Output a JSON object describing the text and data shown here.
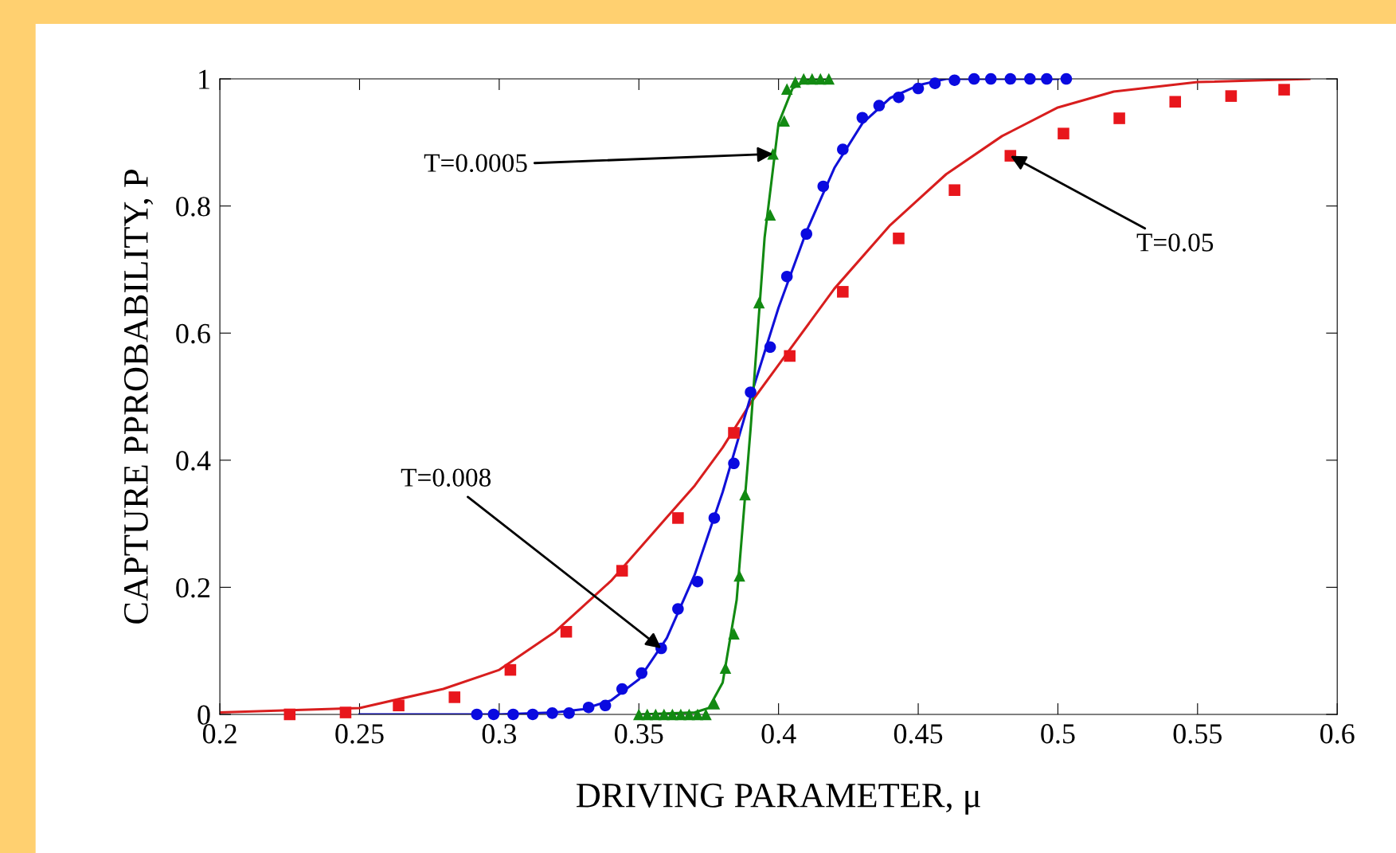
{
  "chart_data": {
    "type": "scatter",
    "xlabel": "DRIVING PARAMETER, μ",
    "ylabel": "CAPTURE PPROBABILITY, P",
    "xlim": [
      0.2,
      0.6
    ],
    "ylim": [
      0,
      1
    ],
    "xticks": [
      0.2,
      0.25,
      0.3,
      0.35,
      0.4,
      0.45,
      0.5,
      0.55,
      0.6
    ],
    "yticks": [
      0,
      0.2,
      0.4,
      0.6,
      0.8,
      1
    ],
    "grid": false,
    "legend": false,
    "series": [
      {
        "type": "line",
        "color": "#d81e1e",
        "marker": "none",
        "x": [
          0.2,
          0.25,
          0.28,
          0.3,
          0.32,
          0.34,
          0.36,
          0.37,
          0.38,
          0.39,
          0.4,
          0.42,
          0.44,
          0.46,
          0.48,
          0.5,
          0.52,
          0.55,
          0.59
        ],
        "values": [
          0.003,
          0.01,
          0.04,
          0.07,
          0.13,
          0.21,
          0.31,
          0.36,
          0.42,
          0.49,
          0.55,
          0.67,
          0.77,
          0.85,
          0.91,
          0.955,
          0.98,
          0.995,
          1
        ]
      },
      {
        "color": "#e8161c",
        "marker": "square",
        "x": [
          0.225,
          0.245,
          0.264,
          0.284,
          0.304,
          0.324,
          0.344,
          0.364,
          0.384,
          0.404,
          0.423,
          0.443,
          0.463,
          0.483,
          0.502,
          0.522,
          0.542,
          0.562,
          0.581
        ],
        "values": [
          0,
          0.003,
          0.014,
          0.027,
          0.07,
          0.13,
          0.226,
          0.309,
          0.443,
          0.564,
          0.665,
          0.749,
          0.825,
          0.879,
          0.914,
          0.938,
          0.964,
          0.973,
          0.983
        ]
      },
      {
        "type": "line",
        "color": "#1010d8",
        "marker": "none",
        "x": [
          0.25,
          0.3,
          0.32,
          0.33,
          0.34,
          0.35,
          0.36,
          0.37,
          0.38,
          0.39,
          0.4,
          0.41,
          0.42,
          0.43,
          0.44,
          0.45,
          0.46,
          0.5
        ],
        "values": [
          0,
          0,
          0.003,
          0.008,
          0.022,
          0.055,
          0.12,
          0.22,
          0.35,
          0.5,
          0.64,
          0.76,
          0.86,
          0.93,
          0.97,
          0.99,
          1,
          1
        ]
      },
      {
        "color": "#0a0ae0",
        "marker": "circle",
        "x": [
          0.292,
          0.298,
          0.305,
          0.312,
          0.319,
          0.325,
          0.332,
          0.338,
          0.344,
          0.351,
          0.358,
          0.364,
          0.371,
          0.377,
          0.384,
          0.39,
          0.397,
          0.403,
          0.41,
          0.416,
          0.423,
          0.43,
          0.436,
          0.443,
          0.45,
          0.456,
          0.463,
          0.47,
          0.476,
          0.483,
          0.49,
          0.496,
          0.503
        ],
        "values": [
          0,
          0,
          0,
          0,
          0.002,
          0.002,
          0.011,
          0.014,
          0.04,
          0.065,
          0.104,
          0.166,
          0.209,
          0.309,
          0.395,
          0.507,
          0.578,
          0.689,
          0.756,
          0.831,
          0.889,
          0.939,
          0.958,
          0.971,
          0.985,
          0.993,
          0.998,
          1,
          1,
          1,
          1,
          1,
          1
        ]
      },
      {
        "type": "line",
        "color": "#128a12",
        "marker": "none",
        "x": [
          0.35,
          0.37,
          0.375,
          0.38,
          0.385,
          0.39,
          0.395,
          0.4,
          0.405,
          0.41,
          0.418
        ],
        "values": [
          0,
          0.003,
          0.01,
          0.05,
          0.18,
          0.45,
          0.75,
          0.93,
          0.985,
          0.998,
          1
        ]
      },
      {
        "color": "#128a12",
        "marker": "triangle",
        "x": [
          0.35,
          0.353,
          0.356,
          0.359,
          0.362,
          0.365,
          0.368,
          0.371,
          0.374,
          0.377,
          0.381,
          0.384,
          0.386,
          0.388,
          0.393,
          0.397,
          0.398,
          0.402,
          0.403,
          0.406,
          0.409,
          0.412,
          0.415,
          0.418
        ],
        "values": [
          0,
          0,
          0,
          0,
          0,
          0,
          0,
          0,
          0,
          0.017,
          0.073,
          0.127,
          0.218,
          0.346,
          0.648,
          0.786,
          0.882,
          0.934,
          0.984,
          0.995,
          1,
          1,
          1,
          1
        ]
      }
    ],
    "annotations": [
      {
        "text": "T=0.0005",
        "x": 0.398,
        "y": 0.882
      },
      {
        "text": "T=0.008",
        "x": 0.358,
        "y": 0.104
      },
      {
        "text": "T=0.05",
        "x": 0.483,
        "y": 0.879
      }
    ]
  }
}
